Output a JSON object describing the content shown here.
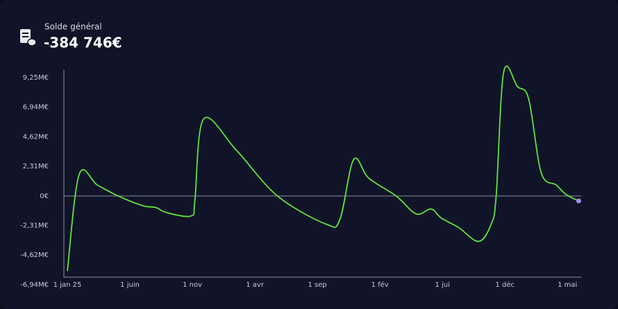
{
  "header": {
    "label": "Solde général",
    "value": "-384 746€"
  },
  "chart_data": {
    "type": "line",
    "x": [
      0,
      0.94,
      2.39,
      4.06,
      6.0,
      7.1,
      7.9,
      9.9,
      10.2,
      10.9,
      13.5,
      16.8,
      20.7,
      21.8,
      22.9,
      24.1,
      26.3,
      27.9,
      29.1,
      29.9,
      31.3,
      32.9,
      33.9,
      34.3,
      34.9,
      36.0,
      36.9,
      37.9,
      39.1,
      39.9,
      40.9
    ],
    "series": [
      {
        "color": "#5fe33f",
        "values": [
          -5860000,
          1670000,
          860000,
          0,
          -750000,
          -910000,
          -1290000,
          -1560000,
          -320000,
          6020000,
          3600000,
          0,
          -2200000,
          -1830000,
          2850000,
          1400000,
          0,
          -1400000,
          -1020000,
          -1720000,
          -2470000,
          -3550000,
          -2200000,
          0,
          9680000,
          8550000,
          7580000,
          1830000,
          860000,
          110000,
          -384746
        ]
      }
    ],
    "end_marker_color": "#a98af0",
    "xlim": [
      -0.28,
      41.1
    ],
    "xticks": [
      {
        "value": 0,
        "label": "1 jan 25"
      },
      {
        "value": 5,
        "label": "1 juin"
      },
      {
        "value": 10,
        "label": "1 nov"
      },
      {
        "value": 15,
        "label": "1 avr"
      },
      {
        "value": 20,
        "label": "1 sep"
      },
      {
        "value": 25,
        "label": "1 fév"
      },
      {
        "value": 30,
        "label": "1 jui"
      },
      {
        "value": 35,
        "label": "1 déc"
      },
      {
        "value": 40,
        "label": "1 mai"
      }
    ],
    "ylim": [
      -6940000,
      9850000
    ],
    "yticks": [
      {
        "value": -6940000,
        "label": "-6,94M€"
      },
      {
        "value": -4620000,
        "label": "-4,62M€"
      },
      {
        "value": -2310000,
        "label": "-2,31M€"
      },
      {
        "value": 0,
        "label": "0€"
      },
      {
        "value": 2310000,
        "label": "2,31M€"
      },
      {
        "value": 4620000,
        "label": "4,62M€"
      },
      {
        "value": 6940000,
        "label": "6,94M€"
      },
      {
        "value": 9250000,
        "label": "9,25M€"
      }
    ]
  }
}
